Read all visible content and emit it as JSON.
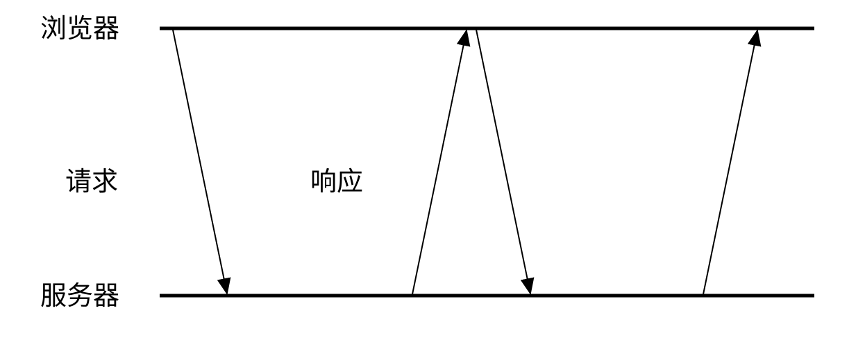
{
  "lanes": {
    "browser": "浏览器",
    "server": "服务器"
  },
  "messages": {
    "request": "请求",
    "response": "响应"
  },
  "colors": {
    "line": "#000000",
    "background": "#ffffff"
  }
}
